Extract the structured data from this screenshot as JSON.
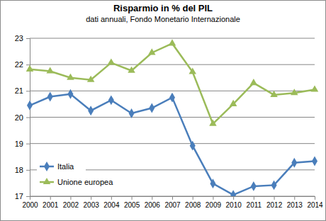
{
  "chart_data": {
    "type": "line",
    "title": "Risparmio in % del PIL",
    "subtitle": "dati annuali, Fondo Monetario Internazionale",
    "categories": [
      "2000",
      "2001",
      "2002",
      "2003",
      "2004",
      "2005",
      "2006",
      "2007",
      "2008",
      "2009",
      "2010",
      "2011",
      "2012",
      "2013",
      "2014"
    ],
    "series": [
      {
        "name": "Italia",
        "color": "#4a7ebb",
        "marker": "diamond",
        "values": [
          20.45,
          20.78,
          20.88,
          20.25,
          20.65,
          20.15,
          20.35,
          20.75,
          18.92,
          17.48,
          17.05,
          17.38,
          17.42,
          18.27,
          18.33
        ]
      },
      {
        "name": "Unione europea",
        "color": "#9bbb59",
        "marker": "triangle",
        "values": [
          21.82,
          21.75,
          21.5,
          21.42,
          22.07,
          21.77,
          22.45,
          22.8,
          21.72,
          19.75,
          20.5,
          21.3,
          20.85,
          20.92,
          21.05
        ]
      }
    ],
    "ylim": [
      17,
      23
    ],
    "yticks": [
      17,
      18,
      19,
      20,
      21,
      22,
      23
    ],
    "grid": true,
    "legend": "bottom-left"
  }
}
